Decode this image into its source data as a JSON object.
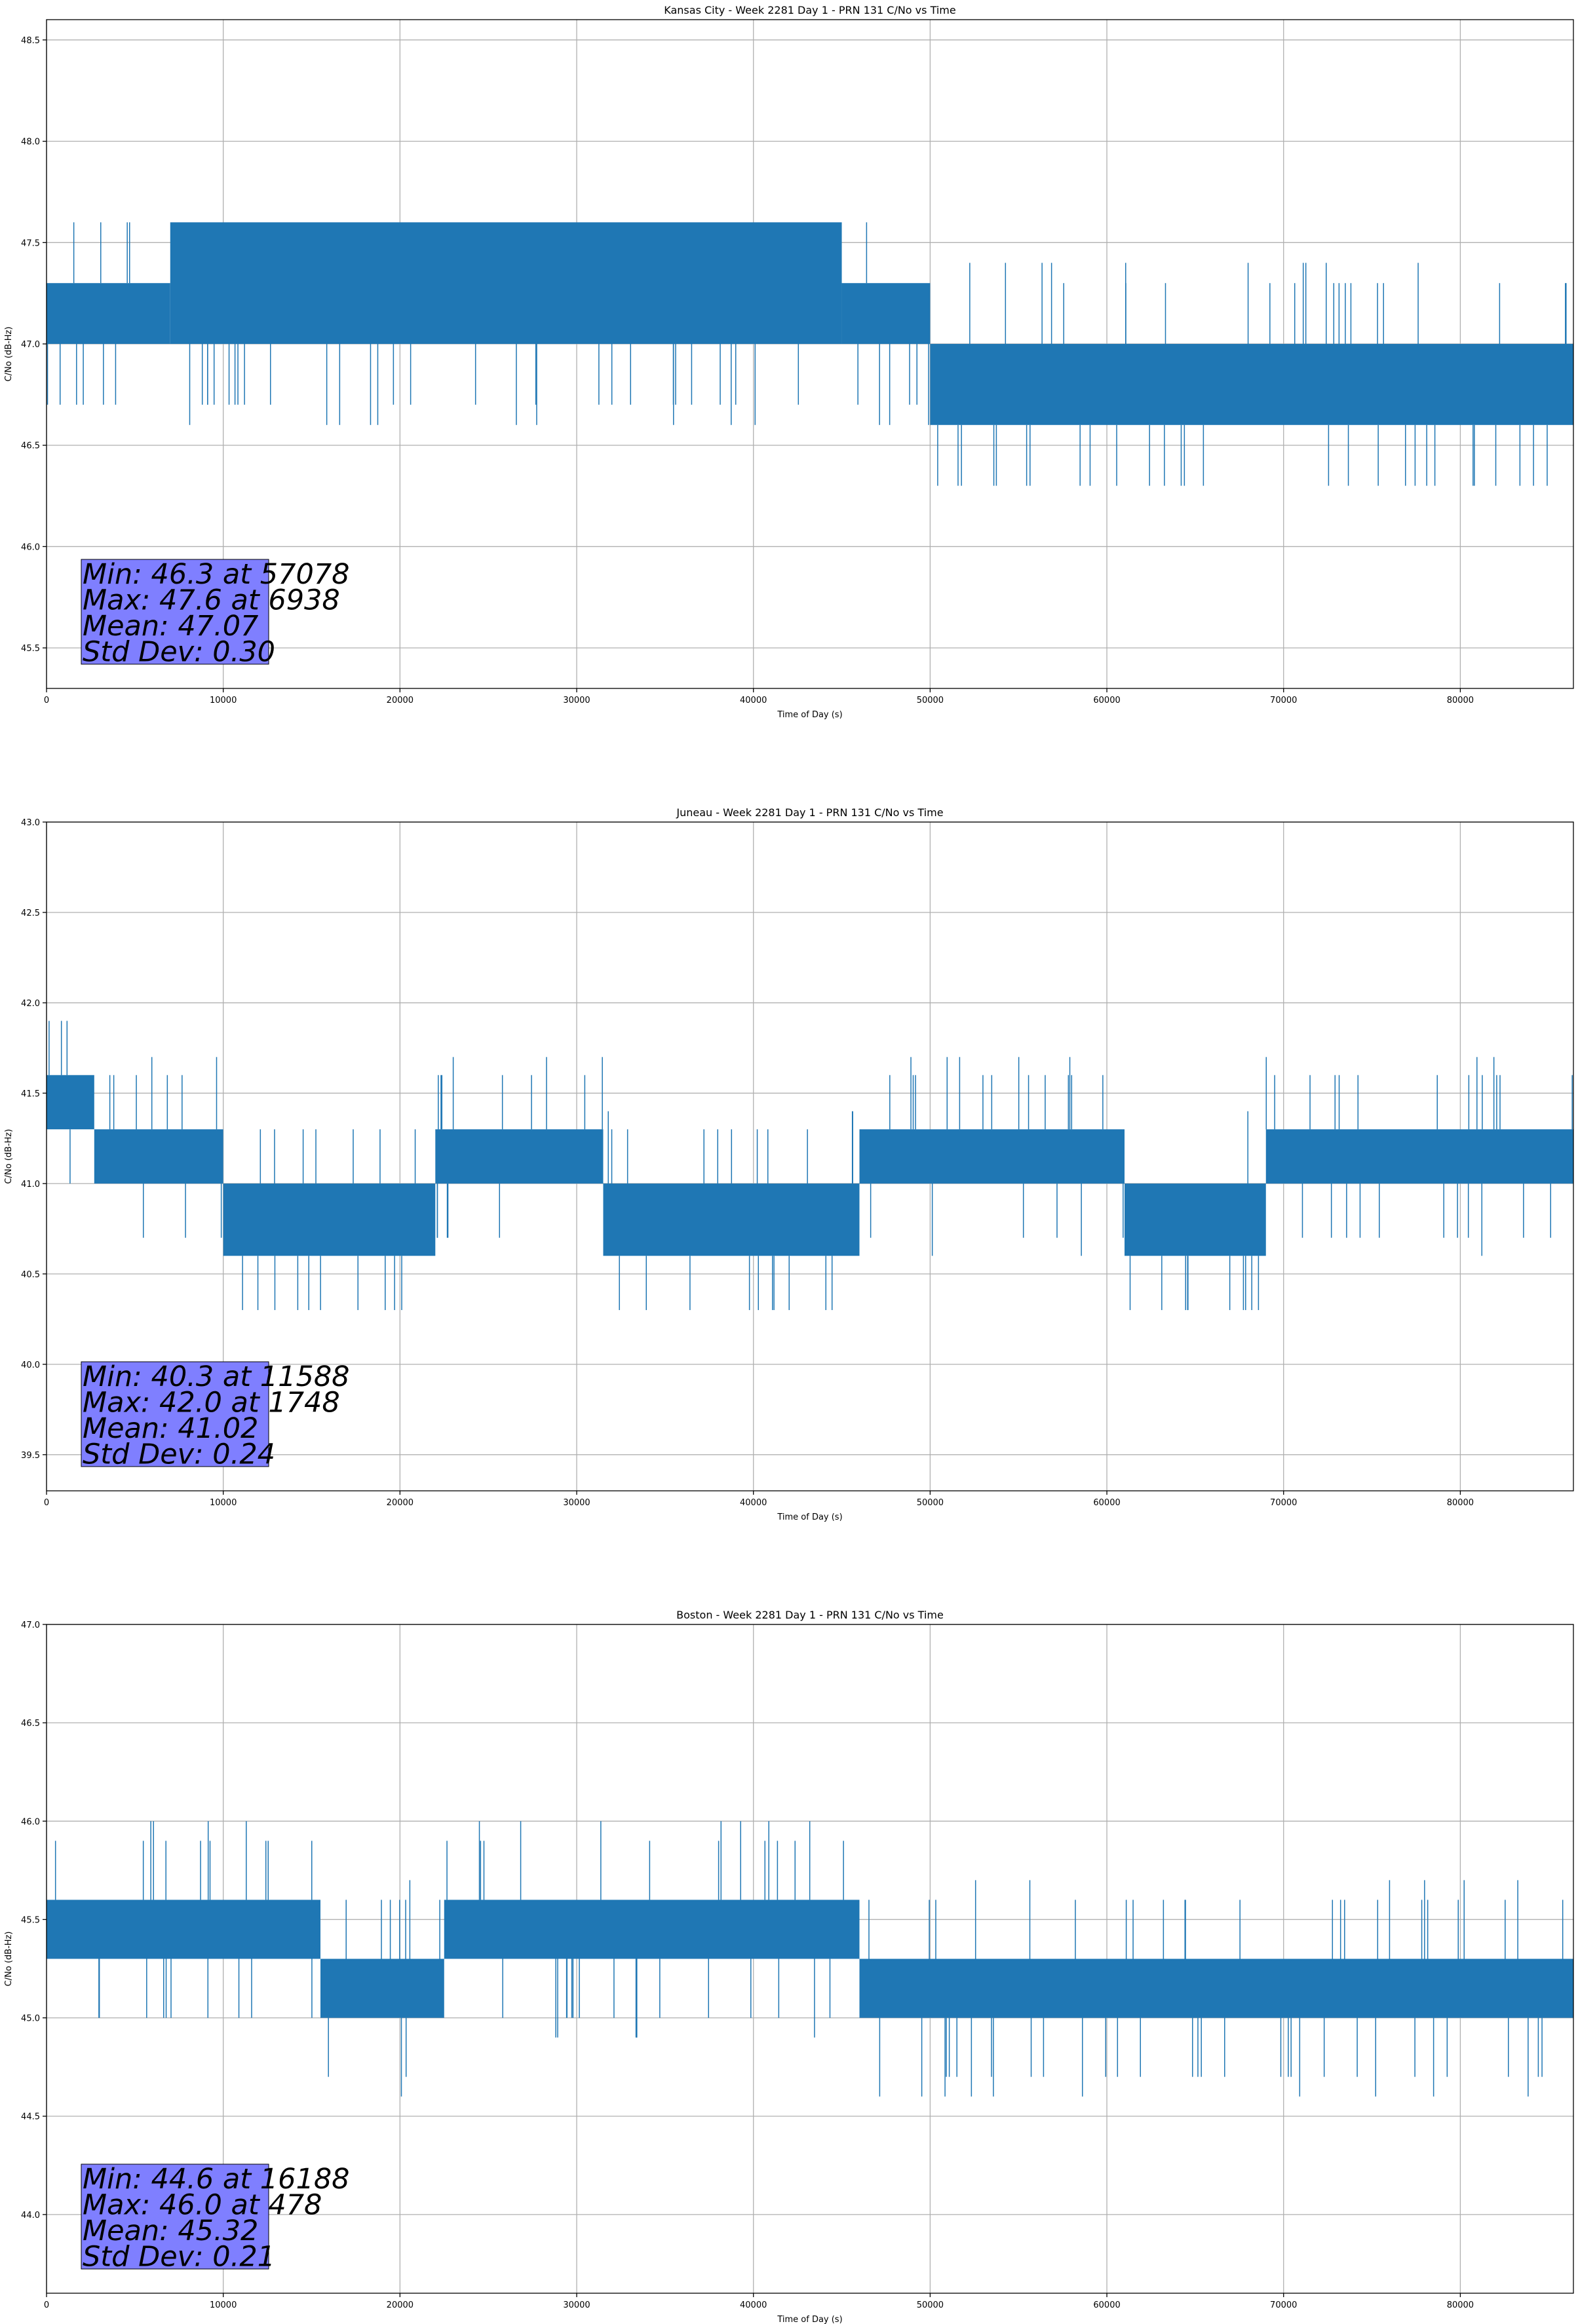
{
  "chart_data": [
    {
      "type": "line",
      "title": "Kansas City - Week 2281 Day 1 - PRN 131 C/No vs Time",
      "xlabel": "Time of Day (s)",
      "ylabel": "C/No (dB-Hz)",
      "xlim": [
        0,
        86400
      ],
      "ylim": [
        45.3,
        48.6
      ],
      "xticks": [
        "0",
        "10000",
        "20000",
        "30000",
        "40000",
        "50000",
        "60000",
        "70000",
        "80000"
      ],
      "yticks": [
        "45.5",
        "46.0",
        "46.5",
        "47.0",
        "47.5",
        "48.0",
        "48.5"
      ],
      "grid": true,
      "series_color": "#1f77b4",
      "segments": [
        {
          "x_start": 0,
          "x_end": 7000,
          "low": 47.0,
          "high": 47.3
        },
        {
          "x_start": 7000,
          "x_end": 45000,
          "low": 47.0,
          "high": 47.6
        },
        {
          "x_start": 45000,
          "x_end": 50000,
          "low": 47.0,
          "high": 47.3
        },
        {
          "x_start": 50000,
          "x_end": 86400,
          "low": 46.6,
          "high": 47.0
        }
      ],
      "stats_box": [
        "Min: 46.3 at 57078",
        "Max: 47.6 at 6938",
        "Mean: 47.07",
        "Std Dev: 0.30"
      ]
    },
    {
      "type": "line",
      "title": "Juneau - Week 2281 Day 1 - PRN 131 C/No vs Time",
      "xlabel": "Time of Day (s)",
      "ylabel": "C/No (dB-Hz)",
      "xlim": [
        0,
        86400
      ],
      "ylim": [
        39.3,
        43.0
      ],
      "xticks": [
        "0",
        "10000",
        "20000",
        "30000",
        "40000",
        "50000",
        "60000",
        "70000",
        "80000"
      ],
      "yticks": [
        "39.5",
        "40.0",
        "40.5",
        "41.0",
        "41.5",
        "42.0",
        "42.5",
        "43.0"
      ],
      "grid": true,
      "series_color": "#1f77b4",
      "segments": [
        {
          "x_start": 0,
          "x_end": 2700,
          "low": 41.3,
          "high": 41.6
        },
        {
          "x_start": 2700,
          "x_end": 10000,
          "low": 41.0,
          "high": 41.3
        },
        {
          "x_start": 10000,
          "x_end": 22000,
          "low": 40.6,
          "high": 41.0
        },
        {
          "x_start": 22000,
          "x_end": 31500,
          "low": 41.0,
          "high": 41.3
        },
        {
          "x_start": 31500,
          "x_end": 46000,
          "low": 40.6,
          "high": 41.0
        },
        {
          "x_start": 46000,
          "x_end": 61000,
          "low": 41.0,
          "high": 41.3
        },
        {
          "x_start": 61000,
          "x_end": 69000,
          "low": 40.6,
          "high": 41.0
        },
        {
          "x_start": 69000,
          "x_end": 86400,
          "low": 41.0,
          "high": 41.3
        }
      ],
      "stats_box": [
        "Min: 40.3 at 11588",
        "Max: 42.0 at 1748",
        "Mean: 41.02",
        "Std Dev: 0.24"
      ]
    },
    {
      "type": "line",
      "title": "Boston - Week 2281 Day 1 - PRN 131 C/No vs Time",
      "xlabel": "Time of Day (s)",
      "ylabel": "C/No (dB-Hz)",
      "xlim": [
        0,
        86400
      ],
      "ylim": [
        43.6,
        47.0
      ],
      "xticks": [
        "0",
        "10000",
        "20000",
        "30000",
        "40000",
        "50000",
        "60000",
        "70000",
        "80000"
      ],
      "yticks": [
        "44.0",
        "44.5",
        "45.0",
        "45.5",
        "46.0",
        "46.5",
        "47.0"
      ],
      "grid": true,
      "series_color": "#1f77b4",
      "segments": [
        {
          "x_start": 0,
          "x_end": 15500,
          "low": 45.3,
          "high": 45.6
        },
        {
          "x_start": 15500,
          "x_end": 22500,
          "low": 45.0,
          "high": 45.3
        },
        {
          "x_start": 22500,
          "x_end": 46000,
          "low": 45.3,
          "high": 45.6
        },
        {
          "x_start": 46000,
          "x_end": 86400,
          "low": 45.0,
          "high": 45.3
        }
      ],
      "stats_box": [
        "Min: 44.6 at 16188",
        "Max: 46.0 at 478",
        "Mean: 45.32",
        "Std Dev: 0.21"
      ]
    }
  ]
}
